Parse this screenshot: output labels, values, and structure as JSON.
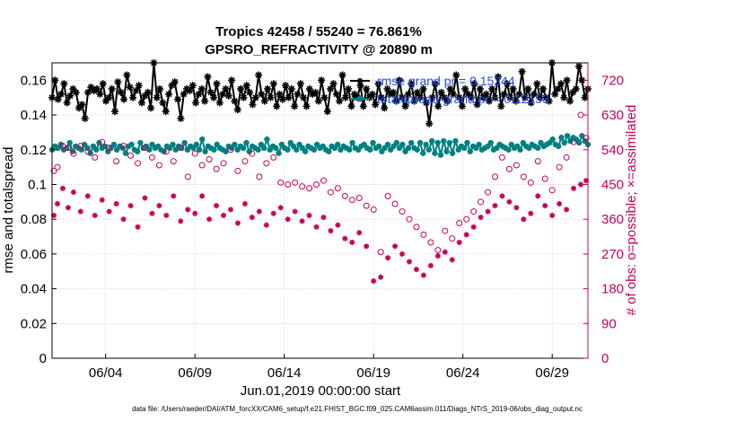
{
  "chart_data": {
    "type": "line",
    "title": "Tropics 42458 / 55240 = 76.861%",
    "subtitle": "GPSRO_REFRACTIVITY @ 20890 m",
    "xlabel": "Jun.01,2019 00:00:00 start",
    "ylabel": "rmse and totalspread",
    "ylabel_right": "# of obs: o=possible; ×=assimilated",
    "x_range": [
      1,
      31
    ],
    "ylim": [
      0,
      0.17
    ],
    "ylim_right": [
      0,
      765
    ],
    "x_ticks": [
      {
        "x": 4,
        "label": "06/04"
      },
      {
        "x": 9,
        "label": "06/09"
      },
      {
        "x": 14,
        "label": "06/14"
      },
      {
        "x": 19,
        "label": "06/19"
      },
      {
        "x": 24,
        "label": "06/24"
      },
      {
        "x": 29,
        "label": "06/29"
      }
    ],
    "y_ticks": [
      0,
      0.02,
      0.04,
      0.06,
      0.08,
      0.1,
      0.12,
      0.14,
      0.16
    ],
    "y_tick_labels": [
      "0",
      "0.02",
      "0.04",
      "0.06",
      "0.08",
      "0.1",
      "0.12",
      "0.14",
      "0.16"
    ],
    "y_right_ticks": [
      0,
      90,
      180,
      270,
      360,
      450,
      540,
      630,
      720
    ],
    "y_right_tick_labels": [
      "0",
      "90",
      "180",
      "270",
      "360",
      "450",
      "540",
      "630",
      "720"
    ],
    "legend": [
      {
        "label": "rmse grand pr = 0.15244",
        "color": "#000000"
      },
      {
        "label": "totalspread grand pr = 0.12153",
        "color": "#008080"
      }
    ],
    "series": [
      {
        "name": "rmse",
        "axis": "left",
        "color": "#000000",
        "marker": "star",
        "values": [
          0.15,
          0.16,
          0.149,
          0.152,
          0.158,
          0.147,
          0.151,
          0.155,
          0.153,
          0.144,
          0.146,
          0.138,
          0.153,
          0.156,
          0.154,
          0.155,
          0.152,
          0.158,
          0.148,
          0.15,
          0.155,
          0.142,
          0.159,
          0.153,
          0.149,
          0.163,
          0.156,
          0.15,
          0.154,
          0.157,
          0.147,
          0.151,
          0.153,
          0.144,
          0.17,
          0.15,
          0.155,
          0.147,
          0.142,
          0.152,
          0.157,
          0.159,
          0.149,
          0.138,
          0.152,
          0.155,
          0.154,
          0.157,
          0.147,
          0.152,
          0.155,
          0.148,
          0.162,
          0.153,
          0.15,
          0.158,
          0.147,
          0.152,
          0.155,
          0.151,
          0.16,
          0.148,
          0.143,
          0.155,
          0.15,
          0.157,
          0.153,
          0.146,
          0.15,
          0.163,
          0.152,
          0.148,
          0.155,
          0.15,
          0.158,
          0.145,
          0.152,
          0.149,
          0.157,
          0.15,
          0.155,
          0.145,
          0.152,
          0.158,
          0.15,
          0.145,
          0.155,
          0.152,
          0.153,
          0.148,
          0.16,
          0.15,
          0.142,
          0.155,
          0.158,
          0.152,
          0.148,
          0.163,
          0.15,
          0.155,
          0.145,
          0.152,
          0.15,
          0.157,
          0.145,
          0.155,
          0.15,
          0.152,
          0.146,
          0.158,
          0.15,
          0.144,
          0.155,
          0.152,
          0.153,
          0.148,
          0.16,
          0.15,
          0.145,
          0.152,
          0.158,
          0.148,
          0.153,
          0.15,
          0.155,
          0.147,
          0.135,
          0.15,
          0.158,
          0.145,
          0.153,
          0.15,
          0.148,
          0.155,
          0.152,
          0.163,
          0.15,
          0.145,
          0.155,
          0.152,
          0.15,
          0.158,
          0.146,
          0.155,
          0.15,
          0.152,
          0.148,
          0.155,
          0.15,
          0.162,
          0.145,
          0.152,
          0.158,
          0.15,
          0.155,
          0.148,
          0.152,
          0.165,
          0.15,
          0.155,
          0.147,
          0.152,
          0.158,
          0.15,
          0.155,
          0.15,
          0.148,
          0.17,
          0.152,
          0.155,
          0.158,
          0.15,
          0.16,
          0.148,
          0.153,
          0.155,
          0.168,
          0.16,
          0.15,
          0.155
        ]
      },
      {
        "name": "totalspread",
        "axis": "left",
        "color": "#008080",
        "marker": "dot",
        "values": [
          0.12,
          0.122,
          0.121,
          0.123,
          0.12,
          0.121,
          0.124,
          0.119,
          0.122,
          0.121,
          0.12,
          0.123,
          0.121,
          0.118,
          0.122,
          0.12,
          0.124,
          0.121,
          0.122,
          0.119,
          0.121,
          0.123,
          0.12,
          0.122,
          0.121,
          0.118,
          0.122,
          0.123,
          0.12,
          0.119,
          0.124,
          0.121,
          0.122,
          0.12,
          0.123,
          0.121,
          0.122,
          0.12,
          0.119,
          0.122,
          0.121,
          0.123,
          0.12,
          0.122,
          0.121,
          0.124,
          0.12,
          0.122,
          0.121,
          0.123,
          0.12,
          0.126,
          0.119,
          0.122,
          0.121,
          0.12,
          0.123,
          0.121,
          0.12,
          0.119,
          0.122,
          0.121,
          0.123,
          0.12,
          0.122,
          0.121,
          0.124,
          0.119,
          0.122,
          0.121,
          0.12,
          0.123,
          0.121,
          0.126,
          0.12,
          0.122,
          0.121,
          0.118,
          0.123,
          0.121,
          0.12,
          0.124,
          0.122,
          0.12,
          0.123,
          0.121,
          0.119,
          0.122,
          0.121,
          0.12,
          0.123,
          0.121,
          0.122,
          0.12,
          0.119,
          0.122,
          0.121,
          0.123,
          0.12,
          0.122,
          0.121,
          0.12,
          0.124,
          0.121,
          0.12,
          0.122,
          0.123,
          0.121,
          0.12,
          0.124,
          0.121,
          0.122,
          0.119,
          0.121,
          0.123,
          0.12,
          0.122,
          0.124,
          0.121,
          0.123,
          0.119,
          0.121,
          0.124,
          0.121,
          0.12,
          0.124,
          0.118,
          0.123,
          0.12,
          0.125,
          0.118,
          0.124,
          0.117,
          0.125,
          0.119,
          0.124,
          0.118,
          0.125,
          0.12,
          0.122,
          0.121,
          0.124,
          0.119,
          0.122,
          0.121,
          0.123,
          0.12,
          0.121,
          0.122,
          0.124,
          0.12,
          0.121,
          0.123,
          0.122,
          0.121,
          0.12,
          0.123,
          0.121,
          0.122,
          0.12,
          0.124,
          0.122,
          0.121,
          0.123,
          0.122,
          0.121,
          0.124,
          0.122,
          0.123,
          0.124,
          0.126,
          0.123,
          0.122,
          0.127,
          0.124,
          0.128,
          0.125,
          0.127,
          0.126,
          0.124,
          0.128,
          0.125,
          0.123
        ]
      },
      {
        "name": "possible",
        "axis": "right",
        "color": "#c8005a",
        "marker": "circle",
        "x": [
          1.1,
          1.3,
          1.6,
          1.9,
          2.2,
          2.6,
          3.0,
          3.4,
          3.8,
          4.2,
          4.6,
          5.0,
          5.4,
          5.8,
          6.2,
          6.6,
          7.0,
          7.4,
          7.8,
          8.2,
          8.6,
          9.0,
          9.4,
          9.8,
          10.2,
          10.6,
          11.0,
          11.4,
          11.8,
          12.2,
          12.6,
          13.0,
          13.4,
          13.8,
          14.2,
          14.6,
          15.0,
          15.4,
          15.8,
          16.2,
          16.6,
          17.0,
          17.4,
          17.8,
          18.2,
          18.6,
          19.0,
          19.4,
          19.8,
          20.2,
          20.6,
          21.0,
          21.4,
          21.8,
          22.2,
          22.6,
          23.0,
          23.4,
          23.8,
          24.2,
          24.6,
          25.0,
          25.4,
          25.8,
          26.2,
          26.6,
          27.0,
          27.4,
          27.8,
          28.2,
          28.6,
          29.0,
          29.4,
          29.8,
          30.2,
          30.6,
          30.9
        ],
        "values": [
          485,
          495,
          550,
          545,
          530,
          550,
          535,
          520,
          560,
          545,
          510,
          550,
          525,
          505,
          545,
          520,
          500,
          535,
          510,
          545,
          470,
          530,
          500,
          515,
          490,
          505,
          540,
          485,
          510,
          530,
          470,
          505,
          520,
          455,
          450,
          455,
          445,
          440,
          450,
          460,
          430,
          440,
          420,
          410,
          415,
          395,
          385,
          275,
          420,
          400,
          380,
          360,
          340,
          320,
          300,
          280,
          330,
          310,
          350,
          360,
          380,
          405,
          430,
          470,
          520,
          490,
          500,
          470,
          455,
          510,
          465,
          435,
          495,
          520,
          560,
          630,
          570
        ]
      },
      {
        "name": "assimilated",
        "axis": "right",
        "color": "#c8005a",
        "marker": "x",
        "x": [
          1.1,
          1.3,
          1.6,
          1.9,
          2.2,
          2.6,
          3.0,
          3.4,
          3.8,
          4.2,
          4.6,
          5.0,
          5.4,
          5.8,
          6.2,
          6.6,
          7.0,
          7.4,
          7.8,
          8.2,
          8.6,
          9.0,
          9.4,
          9.8,
          10.2,
          10.6,
          11.0,
          11.4,
          11.8,
          12.2,
          12.6,
          13.0,
          13.4,
          13.8,
          14.2,
          14.6,
          15.0,
          15.4,
          15.8,
          16.2,
          16.6,
          17.0,
          17.4,
          17.8,
          18.2,
          18.6,
          19.0,
          19.4,
          19.8,
          20.2,
          20.6,
          21.0,
          21.4,
          21.8,
          22.2,
          22.6,
          23.0,
          23.4,
          23.8,
          24.2,
          24.6,
          25.0,
          25.4,
          25.8,
          26.2,
          26.6,
          27.0,
          27.4,
          27.8,
          28.2,
          28.6,
          29.0,
          29.4,
          29.8,
          30.2,
          30.6,
          30.9
        ],
        "values": [
          370,
          400,
          440,
          390,
          430,
          380,
          420,
          370,
          410,
          380,
          400,
          360,
          395,
          340,
          415,
          375,
          395,
          370,
          420,
          355,
          385,
          375,
          420,
          360,
          395,
          370,
          385,
          350,
          400,
          365,
          380,
          345,
          375,
          390,
          360,
          380,
          355,
          370,
          340,
          365,
          330,
          345,
          310,
          300,
          325,
          290,
          200,
          210,
          260,
          290,
          270,
          250,
          230,
          215,
          240,
          265,
          275,
          255,
          300,
          320,
          340,
          365,
          380,
          395,
          420,
          405,
          390,
          360,
          375,
          420,
          395,
          370,
          400,
          385,
          440,
          450,
          460
        ]
      }
    ]
  },
  "footer": "data file: /Users/raeder/DAI/ATM_forcXX/CAM6_setup/f.e21.FHIST_BGC.f09_025.CAM6assim.011/Diags_NTrS_2019-06/obs_diag_output.nc"
}
